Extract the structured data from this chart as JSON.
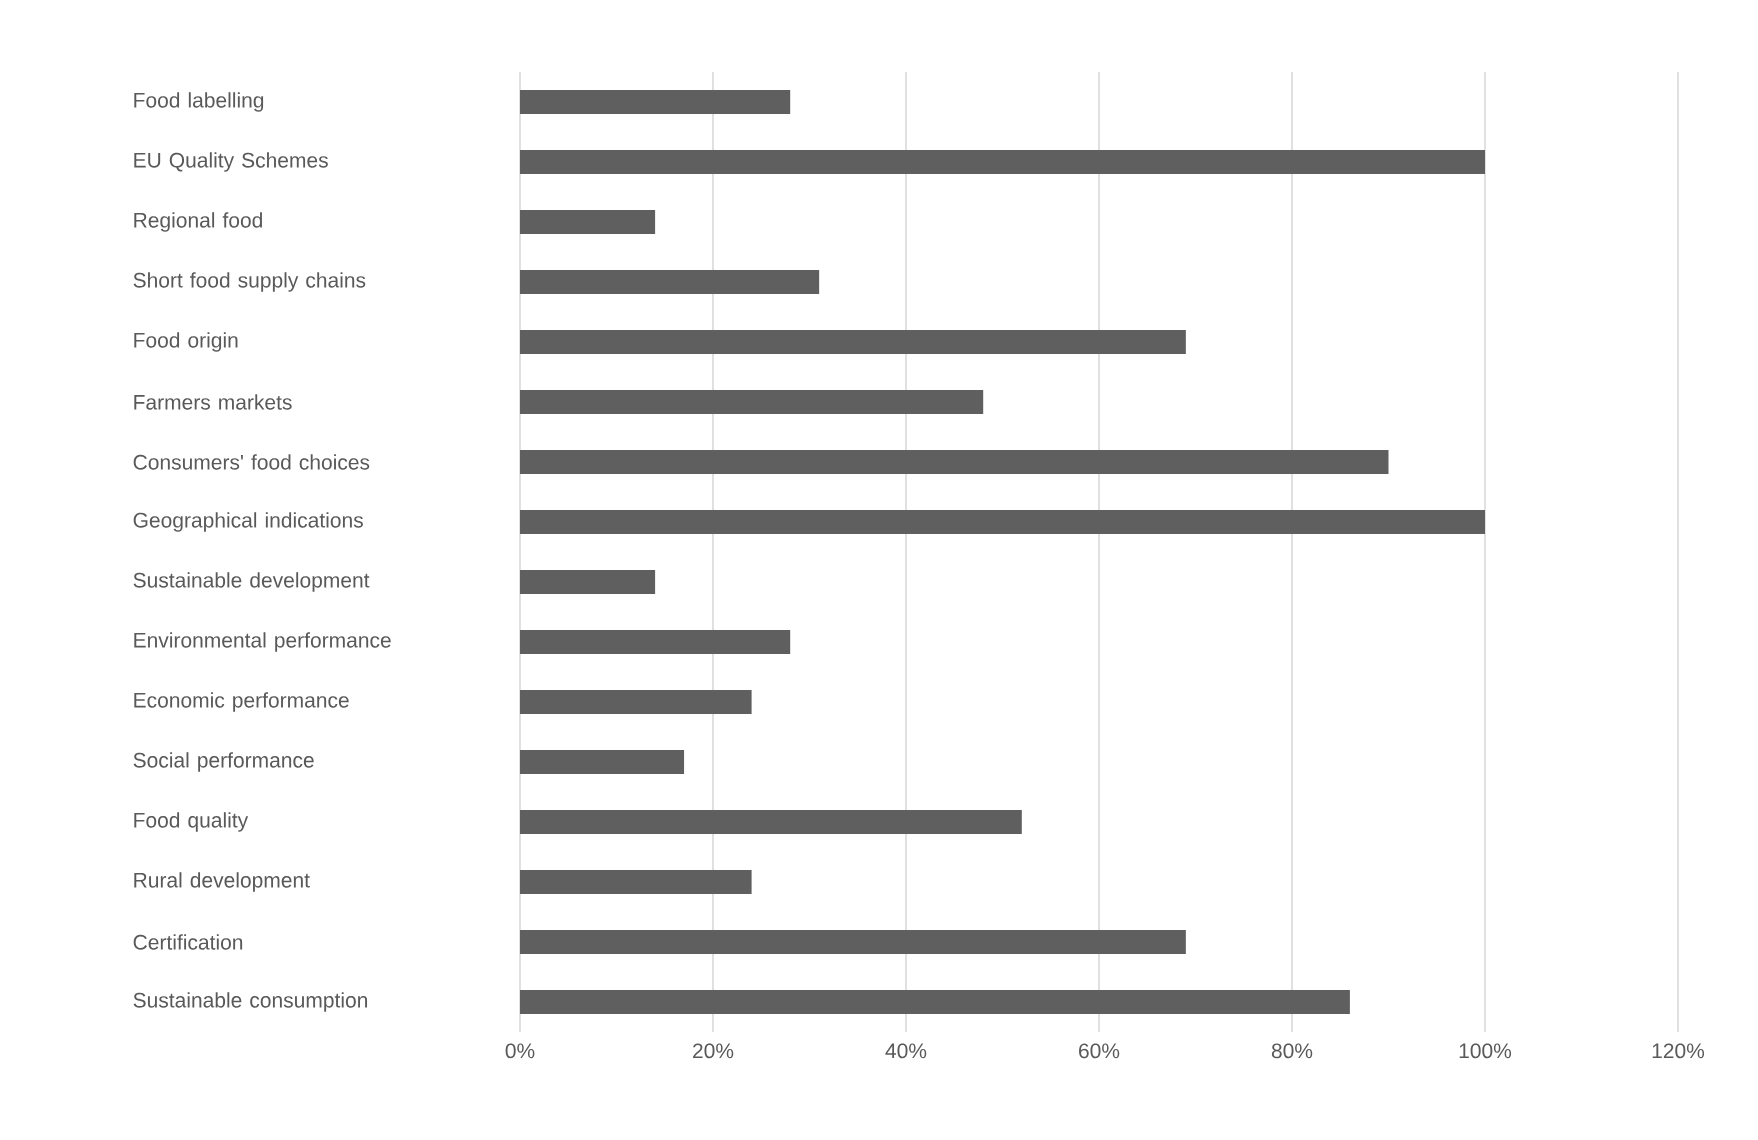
{
  "chart_data": {
    "type": "bar",
    "orientation": "horizontal",
    "categories": [
      "Food labelling",
      "EU Quality Schemes",
      "Regional food",
      "Short food supply chains",
      "Food origin",
      "Farmers markets",
      "Consumers' food choices",
      "Geographical indications",
      "Sustainable development",
      "Environmental performance",
      "Economic performance",
      "Social performance",
      "Food quality",
      "Rural development",
      "Certification",
      "Sustainable consumption"
    ],
    "values": [
      28,
      100,
      14,
      31,
      69,
      48,
      90,
      100,
      14,
      28,
      24,
      17,
      52,
      24,
      69,
      86
    ],
    "color": "#5f5f5f",
    "xlim": [
      0,
      120
    ],
    "xticks": [
      {
        "value": 0,
        "label": "0%"
      },
      {
        "value": 20,
        "label": "20%"
      },
      {
        "value": 40,
        "label": "40%"
      },
      {
        "value": 60,
        "label": "60%"
      },
      {
        "value": 80,
        "label": "80%"
      },
      {
        "value": 100,
        "label": "100%"
      },
      {
        "value": 120,
        "label": "120%"
      }
    ],
    "grid": "x"
  }
}
